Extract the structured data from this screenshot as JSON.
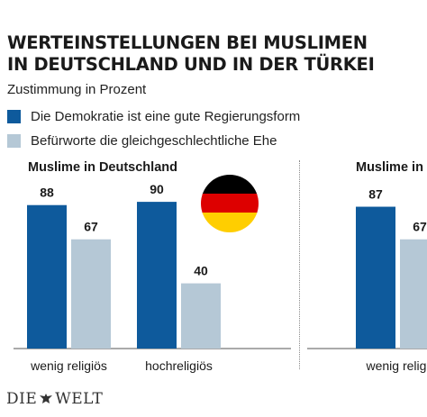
{
  "title_lines": [
    "WERTEINSTELLUNGEN BEI MUSLIMEN",
    "IN DEUTSCHLAND UND IN DER TÜRKEI"
  ],
  "subtitle": "Zustimmung in Prozent",
  "colors": {
    "democracy": "#0e5a9c",
    "marriage": "#b5c8d6",
    "axis": "#555555"
  },
  "chart_data": [
    {
      "type": "bar",
      "title": "Muslime in Deutschland",
      "categories": [
        "wenig religiös",
        "hochreligiös"
      ],
      "series": [
        {
          "name": "Die Demokratie ist eine gute Regierungsform",
          "values": [
            88,
            90
          ]
        },
        {
          "name": "Befürworte die gleichgeschlechtliche Ehe",
          "values": [
            67,
            40
          ]
        }
      ],
      "ylim": [
        0,
        100
      ],
      "grid": false,
      "legend_position": "top-left"
    },
    {
      "type": "bar",
      "title": "Muslime in",
      "categories": [
        "wenig religi"
      ],
      "series": [
        {
          "name": "Die Demokratie ist eine gute Regierungsform",
          "values": [
            87
          ]
        },
        {
          "name": "Befürworte die gleichgeschlechtliche Ehe",
          "values": [
            67
          ]
        }
      ],
      "ylim": [
        0,
        100
      ],
      "grid": false
    }
  ],
  "flag": {
    "name": "germany-flag",
    "colors": [
      "#000000",
      "#dd0000",
      "#ffce00"
    ]
  },
  "logo": {
    "left": "DIE",
    "right": "WELT"
  }
}
